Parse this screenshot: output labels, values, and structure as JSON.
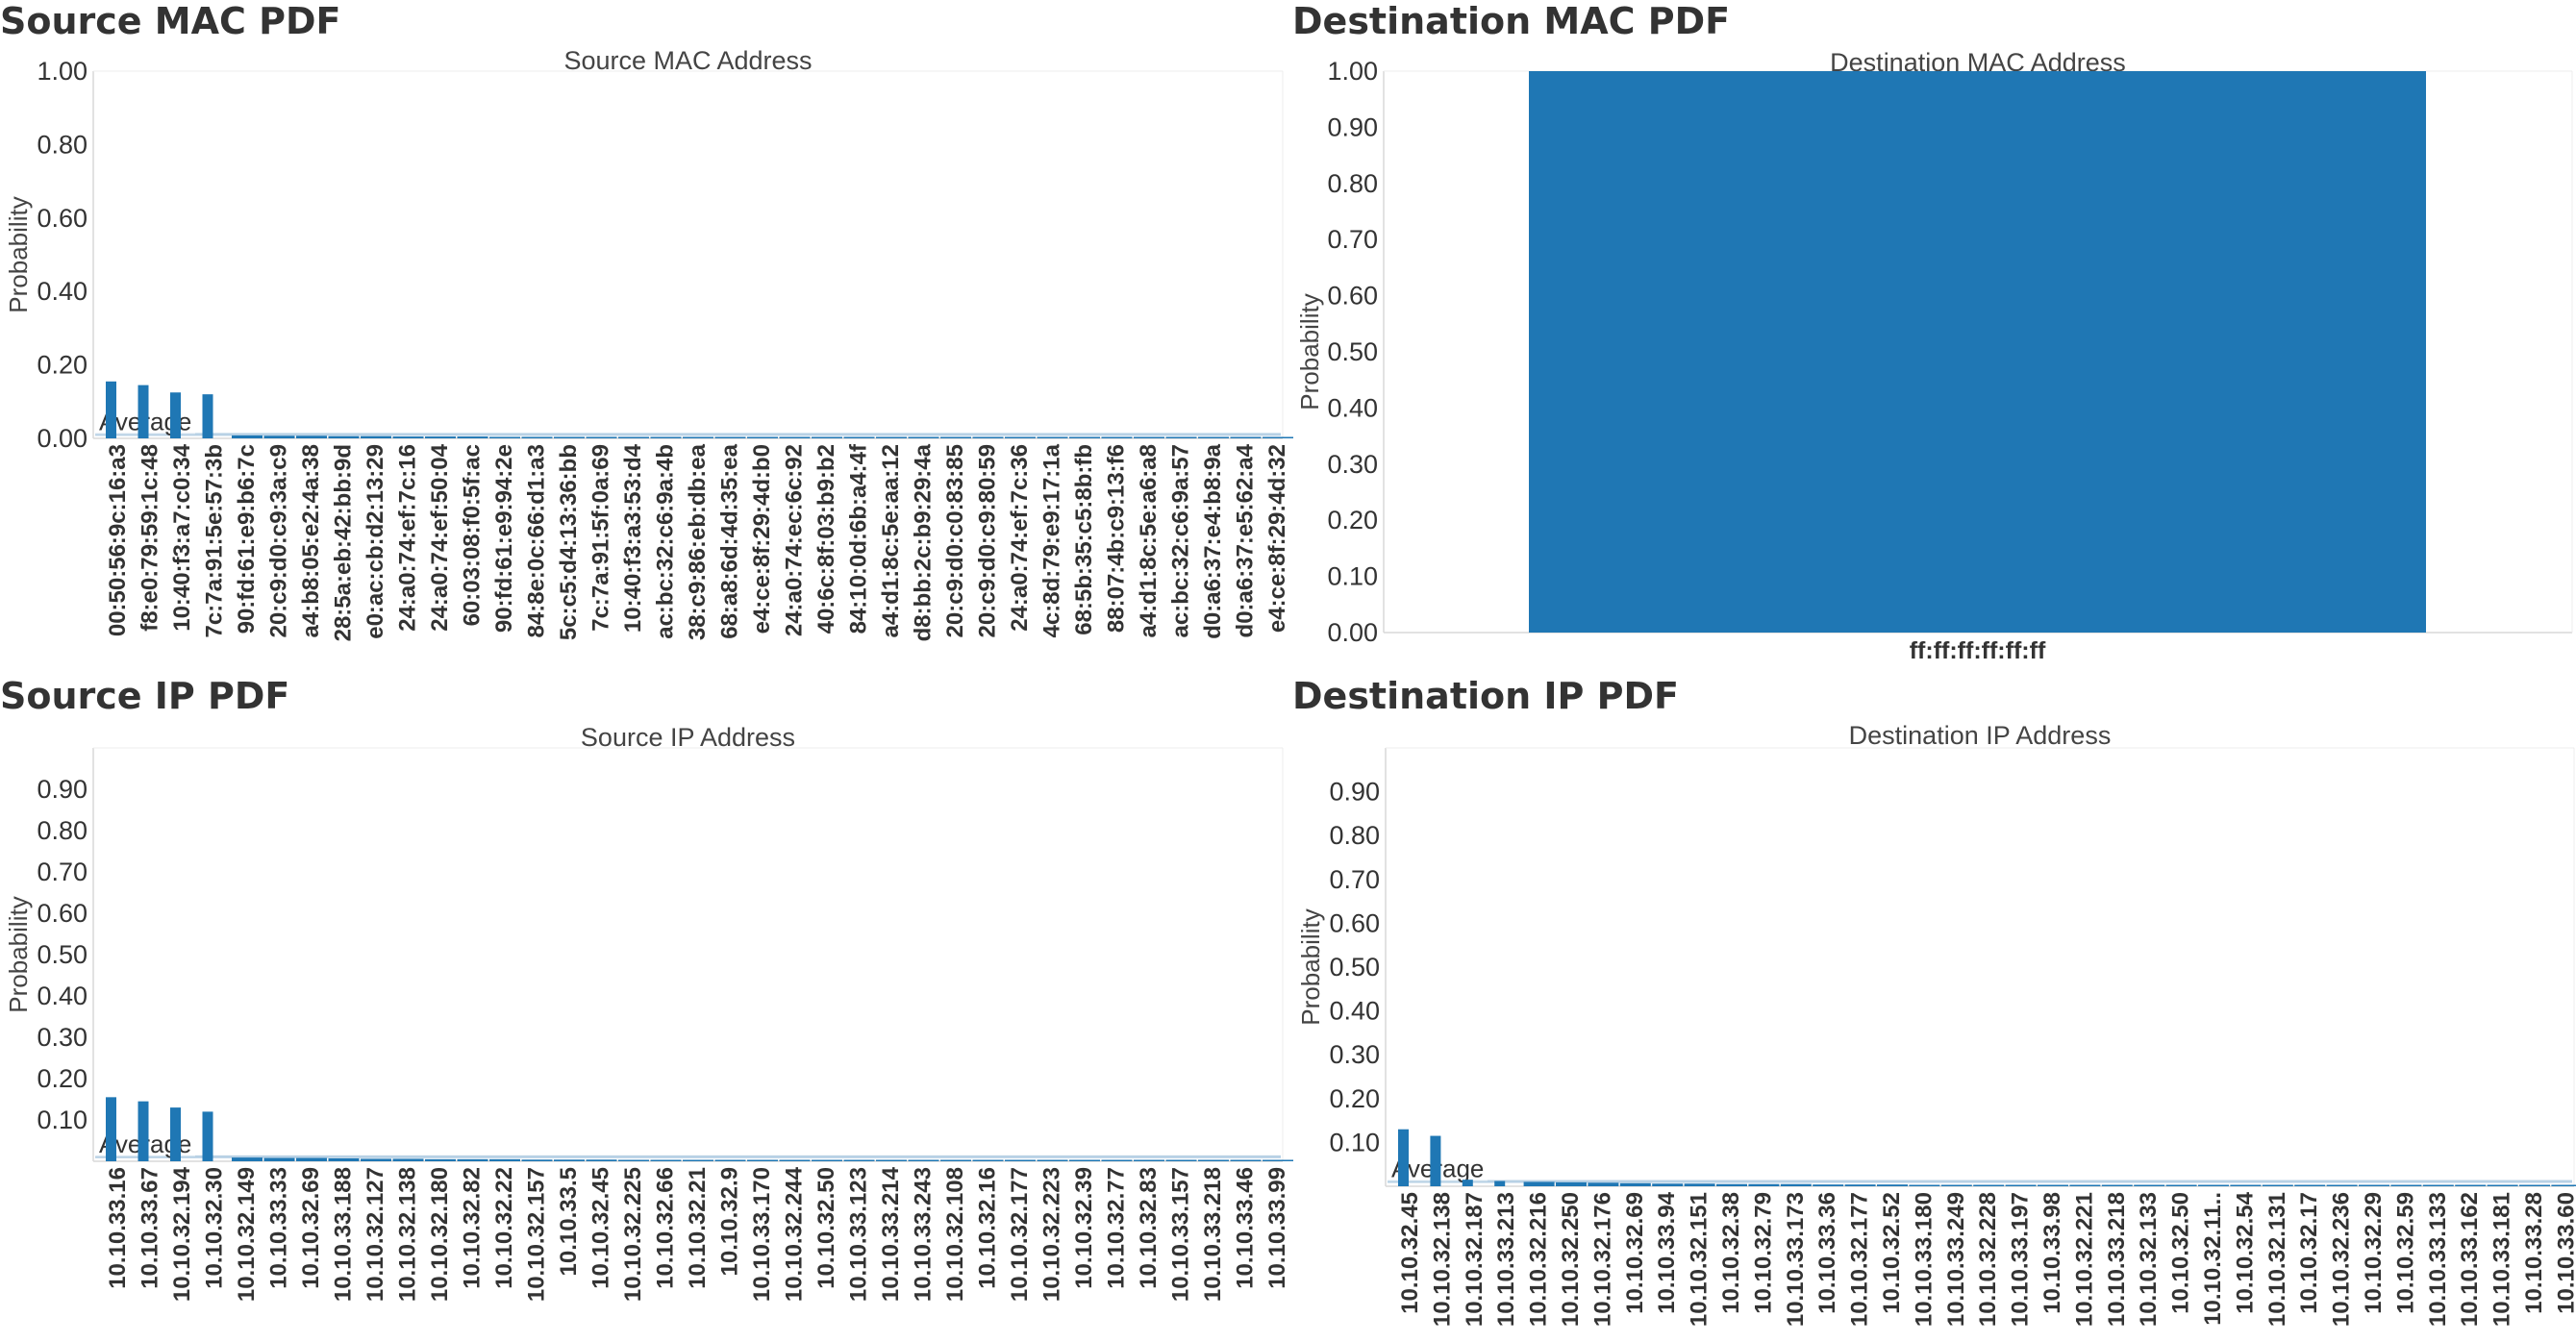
{
  "colors": {
    "bar": "#1f77b4",
    "avg_band": "#a6c6df",
    "axis": "#d9d9d9",
    "text": "#333333"
  },
  "panels": [
    {
      "id": "source-mac",
      "title": "Source MAC PDF",
      "chart_data": {
        "type": "bar",
        "title": "Source MAC Address",
        "xlabel": "",
        "ylabel": "Probability",
        "ylim": [
          0,
          1.0
        ],
        "yticks": [
          "0.00",
          "0.20",
          "0.40",
          "0.60",
          "0.80",
          "1.00"
        ],
        "average_label": "Average",
        "average_value": 0.012,
        "categories": [
          "00:50:56:9c:16:a3",
          "f8:e0:79:59:1c:48",
          "10:40:f3:a7:c0:34",
          "7c:7a:91:5e:57:3b",
          "90:fd:61:e9:b6:7c",
          "20:c9:d0:c9:3a:c9",
          "a4:b8:05:e2:4a:38",
          "28:5a:eb:42:bb:9d",
          "e0:ac:cb:d2:13:29",
          "24:a0:74:ef:7c:16",
          "24:a0:74:ef:50:04",
          "60:03:08:f0:5f:ac",
          "90:fd:61:e9:94:2e",
          "84:8e:0c:66:d1:a3",
          "5c:c5:d4:13:36:bb",
          "7c:7a:91:5f:0a:69",
          "10:40:f3:a3:53:d4",
          "ac:bc:32:c6:9a:4b",
          "38:c9:86:eb:db:ea",
          "68:a8:6d:4d:35:ea",
          "e4:ce:8f:29:4d:b0",
          "24:a0:74:ec:6c:92",
          "40:6c:8f:03:b9:b2",
          "84:10:0d:6b:a4:4f",
          "a4:d1:8c:5e:aa:12",
          "d8:bb:2c:b9:29:4a",
          "20:c9:d0:c0:83:85",
          "20:c9:d0:c9:80:59",
          "24:a0:74:ef:7c:36",
          "4c:8d:79:e9:17:1a",
          "68:5b:35:c5:8b:fb",
          "88:07:4b:c9:13:f6",
          "a4:d1:8c:5e:a6:a8",
          "ac:bc:32:c6:9a:57",
          "d0:a6:37:e4:b8:9a",
          "d0:a6:37:e5:62:a4",
          "e4:ce:8f:29:4d:32"
        ],
        "values": [
          0.155,
          0.145,
          0.125,
          0.12,
          0.008,
          0.007,
          0.007,
          0.006,
          0.006,
          0.005,
          0.005,
          0.005,
          0.004,
          0.004,
          0.004,
          0.004,
          0.003,
          0.003,
          0.003,
          0.003,
          0.003,
          0.002,
          0.002,
          0.002,
          0.002,
          0.002,
          0.002,
          0.002,
          0.002,
          0.001,
          0.001,
          0.001,
          0.001,
          0.001,
          0.001,
          0.001,
          0.001
        ],
        "grid": false
      }
    },
    {
      "id": "destination-mac",
      "title": "Destination MAC PDF",
      "chart_data": {
        "type": "bar",
        "title": "Destination MAC Address",
        "xlabel": "",
        "ylabel": "Probability",
        "ylim": [
          0,
          1.0
        ],
        "yticks": [
          "0.00",
          "0.10",
          "0.20",
          "0.30",
          "0.40",
          "0.50",
          "0.60",
          "0.70",
          "0.80",
          "0.90",
          "1.00"
        ],
        "categories": [
          "ff:ff:ff:ff:ff:ff"
        ],
        "values": [
          1.0
        ],
        "grid": false
      }
    },
    {
      "id": "source-ip",
      "title": "Source IP PDF",
      "chart_data": {
        "type": "bar",
        "title": "Source IP Address",
        "xlabel": "",
        "ylabel": "Probability",
        "ylim": [
          0,
          1.0
        ],
        "yticks": [
          "0.10",
          "0.20",
          "0.30",
          "0.40",
          "0.50",
          "0.60",
          "0.70",
          "0.80",
          "0.90"
        ],
        "average_label": "Average",
        "average_value": 0.012,
        "categories": [
          "10.10.33.16",
          "10.10.33.67",
          "10.10.32.194",
          "10.10.32.30",
          "10.10.32.149",
          "10.10.33.33",
          "10.10.32.69",
          "10.10.33.188",
          "10.10.32.127",
          "10.10.32.138",
          "10.10.32.180",
          "10.10.32.82",
          "10.10.32.22",
          "10.10.32.157",
          "10.10.33.5",
          "10.10.32.45",
          "10.10.32.225",
          "10.10.32.66",
          "10.10.32.21",
          "10.10.32.9",
          "10.10.33.170",
          "10.10.32.244",
          "10.10.32.50",
          "10.10.33.123",
          "10.10.33.214",
          "10.10.33.243",
          "10.10.32.108",
          "10.10.32.16",
          "10.10.32.177",
          "10.10.32.223",
          "10.10.32.39",
          "10.10.32.77",
          "10.10.32.83",
          "10.10.33.157",
          "10.10.33.218",
          "10.10.33.46",
          "10.10.33.99"
        ],
        "values": [
          0.155,
          0.145,
          0.13,
          0.12,
          0.009,
          0.008,
          0.008,
          0.007,
          0.006,
          0.006,
          0.005,
          0.005,
          0.005,
          0.004,
          0.004,
          0.004,
          0.003,
          0.003,
          0.003,
          0.003,
          0.002,
          0.002,
          0.002,
          0.002,
          0.002,
          0.002,
          0.002,
          0.002,
          0.002,
          0.001,
          0.001,
          0.001,
          0.001,
          0.001,
          0.001,
          0.001,
          0.001
        ],
        "grid": false
      }
    },
    {
      "id": "destination-ip",
      "title": "Destination IP PDF",
      "chart_data": {
        "type": "bar",
        "title": "Destination IP Address",
        "xlabel": "",
        "ylabel": "Probability",
        "ylim": [
          0,
          1.0
        ],
        "yticks": [
          "0.10",
          "0.20",
          "0.30",
          "0.40",
          "0.50",
          "0.60",
          "0.70",
          "0.80",
          "0.90"
        ],
        "average_label": "Average",
        "average_value": 0.012,
        "categories": [
          "10.10.32.45",
          "10.10.32.138",
          "10.10.32.187",
          "10.10.33.213",
          "10.10.32.216",
          "10.10.32.250",
          "10.10.32.176",
          "10.10.32.69",
          "10.10.33.94",
          "10.10.32.151",
          "10.10.32.38",
          "10.10.32.79",
          "10.10.33.173",
          "10.10.33.36",
          "10.10.32.177",
          "10.10.32.52",
          "10.10.33.180",
          "10.10.33.249",
          "10.10.32.228",
          "10.10.33.197",
          "10.10.33.98",
          "10.10.32.221",
          "10.10.33.218",
          "10.10.32.133",
          "10.10.32.50",
          "10.10.32.11..",
          "10.10.32.54",
          "10.10.32.131",
          "10.10.32.17",
          "10.10.32.236",
          "10.10.32.29",
          "10.10.32.59",
          "10.10.33.133",
          "10.10.33.162",
          "10.10.33.181",
          "10.10.33.28",
          "10.10.33.60"
        ],
        "values": [
          0.13,
          0.115,
          0.015,
          0.012,
          0.01,
          0.009,
          0.008,
          0.007,
          0.006,
          0.006,
          0.005,
          0.005,
          0.005,
          0.004,
          0.004,
          0.004,
          0.003,
          0.003,
          0.003,
          0.003,
          0.003,
          0.002,
          0.002,
          0.002,
          0.002,
          0.002,
          0.002,
          0.002,
          0.002,
          0.002,
          0.001,
          0.001,
          0.001,
          0.001,
          0.001,
          0.001,
          0.001
        ],
        "grid": false
      }
    }
  ]
}
